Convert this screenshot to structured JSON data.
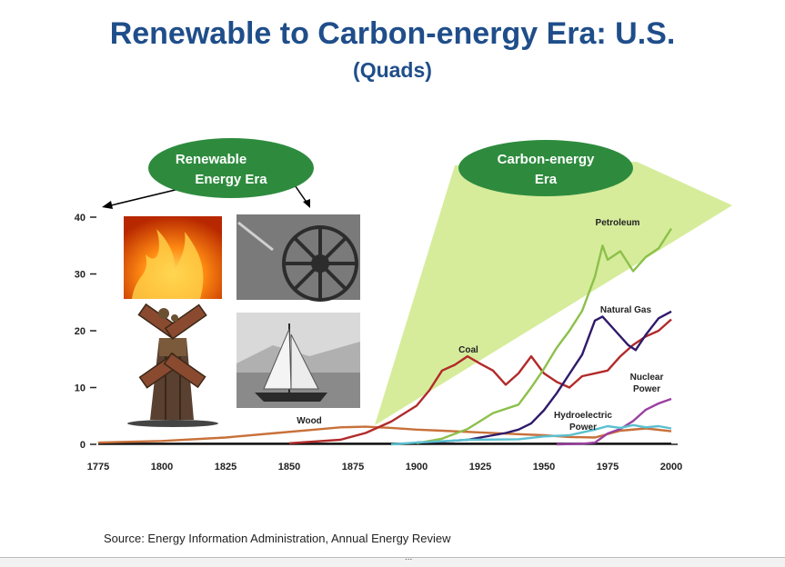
{
  "title": "Renewable to Carbon-energy Era: U.S.",
  "subtitle": "(Quads)",
  "source": "Source: Energy Information Administration, Annual Energy Review",
  "footer_ellipsis": "...",
  "eras": {
    "renewable": {
      "line1": "Renewable",
      "line2": "Energy Era"
    },
    "carbon": {
      "line1": "Carbon-energy",
      "line2": "Era"
    }
  },
  "images": [
    {
      "name": "fire-image",
      "icon": "fire-icon"
    },
    {
      "name": "waterwheel-image",
      "icon": "waterwheel-icon"
    },
    {
      "name": "windmill-image",
      "icon": "windmill-icon"
    },
    {
      "name": "sailboat-image",
      "icon": "sailboat-icon"
    }
  ],
  "colors": {
    "title": "#1f4e8a",
    "era_fill": "#2e8b3e",
    "beam": "#c8e67a",
    "wood": "#c8703a",
    "coal": "#b22a2a",
    "petroleum": "#8cc04a",
    "natural_gas": "#2f1a6a",
    "nuclear": "#9b3fa0",
    "hydro": "#5bc0d0"
  },
  "chart_data": {
    "type": "line",
    "title": "Renewable to Carbon-energy Era: U.S.",
    "subtitle": "(Quads)",
    "xlabel": "",
    "ylabel": "Quads",
    "xlim": [
      1775,
      2000
    ],
    "ylim": [
      0,
      40
    ],
    "x_ticks": [
      "1775",
      "1800",
      "1825",
      "1850",
      "1875",
      "1900",
      "1925",
      "1950",
      "1975",
      "2000"
    ],
    "y_ticks": [
      "0",
      "10",
      "20",
      "30",
      "40"
    ],
    "series": [
      {
        "name": "Wood",
        "key": "wood",
        "label": "Wood",
        "x": [
          1775,
          1800,
          1825,
          1845,
          1860,
          1870,
          1880,
          1890,
          1900,
          1910,
          1925,
          1940,
          1950,
          1960,
          1970,
          1980,
          1990,
          2000
        ],
        "y": [
          0.3,
          0.6,
          1.2,
          2.0,
          2.6,
          3.0,
          3.1,
          2.9,
          2.6,
          2.4,
          2.1,
          1.8,
          1.6,
          1.3,
          1.2,
          2.4,
          2.8,
          2.3
        ]
      },
      {
        "name": "Coal",
        "key": "coal",
        "label": "Coal",
        "x": [
          1850,
          1870,
          1880,
          1890,
          1900,
          1905,
          1910,
          1915,
          1920,
          1925,
          1930,
          1935,
          1940,
          1945,
          1950,
          1955,
          1960,
          1965,
          1970,
          1975,
          1980,
          1985,
          1990,
          1995,
          2000
        ],
        "y": [
          0.2,
          0.8,
          2.0,
          4.0,
          6.8,
          9.5,
          13.0,
          14.0,
          15.5,
          14.2,
          13.0,
          10.5,
          12.5,
          15.5,
          12.5,
          11.0,
          10.0,
          12.0,
          12.5,
          13.0,
          15.5,
          17.5,
          19.0,
          20.0,
          22.0
        ]
      },
      {
        "name": "Petroleum",
        "key": "petroleum",
        "label": "Petroleum",
        "x": [
          1900,
          1910,
          1920,
          1930,
          1940,
          1945,
          1950,
          1955,
          1960,
          1965,
          1970,
          1973,
          1975,
          1980,
          1985,
          1990,
          1995,
          2000
        ],
        "y": [
          0.2,
          1.0,
          2.7,
          5.5,
          7.0,
          10.0,
          13.3,
          17.0,
          20.0,
          23.5,
          29.5,
          35.0,
          32.5,
          34.0,
          30.5,
          33.0,
          34.5,
          38.0
        ]
      },
      {
        "name": "Natural Gas",
        "key": "natural_gas",
        "label": "Natural Gas",
        "x": [
          1900,
          1910,
          1920,
          1930,
          1935,
          1940,
          1945,
          1950,
          1955,
          1960,
          1965,
          1970,
          1973,
          1978,
          1983,
          1986,
          1990,
          1995,
          2000
        ],
        "y": [
          0.3,
          0.5,
          0.8,
          1.6,
          2.0,
          2.6,
          3.7,
          6.0,
          9.0,
          12.4,
          15.8,
          21.8,
          22.5,
          20.0,
          17.5,
          16.6,
          19.3,
          22.2,
          23.4
        ]
      },
      {
        "name": "Nuclear Power",
        "key": "nuclear",
        "label": "Nuclear Power",
        "x": [
          1955,
          1965,
          1970,
          1975,
          1980,
          1985,
          1990,
          1995,
          2000
        ],
        "y": [
          0.0,
          0.1,
          0.3,
          1.9,
          2.7,
          4.1,
          6.1,
          7.2,
          8.0
        ]
      },
      {
        "name": "Hydroelectric Power",
        "key": "hydro",
        "label": "Hydroelectric Power",
        "x": [
          1890,
          1900,
          1920,
          1940,
          1950,
          1960,
          1970,
          1975,
          1980,
          1985,
          1990,
          1995,
          2000
        ],
        "y": [
          0.0,
          0.3,
          0.8,
          0.9,
          1.4,
          1.6,
          2.6,
          3.2,
          2.9,
          3.4,
          3.0,
          3.2,
          2.8
        ]
      }
    ]
  }
}
